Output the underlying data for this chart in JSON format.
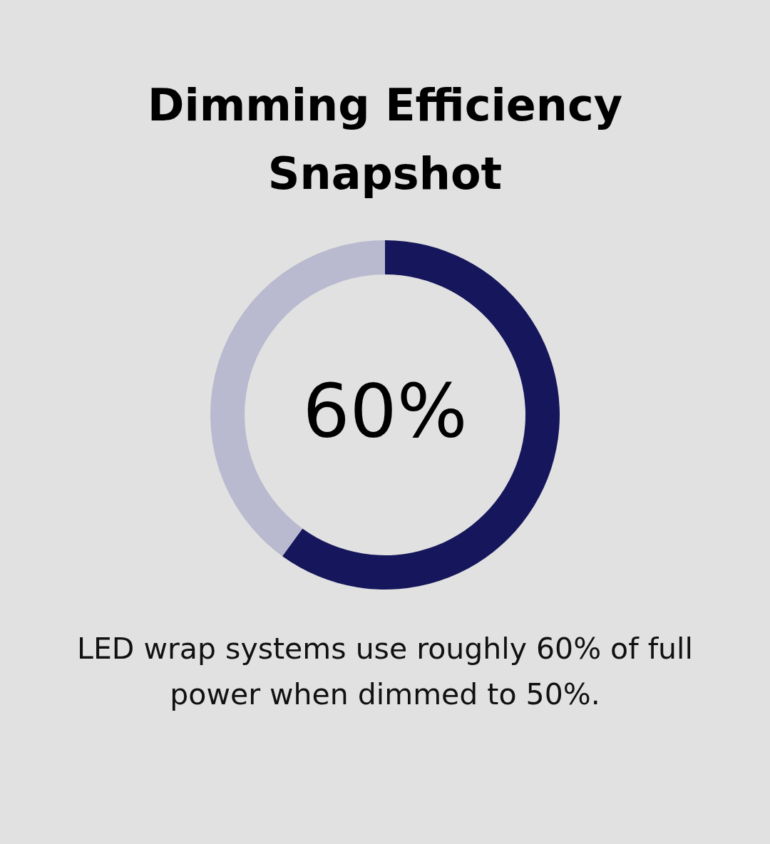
{
  "chart_data": {
    "type": "donut",
    "title": "Dimming Efficiency Snapshot",
    "categories": [
      null,
      null
    ],
    "values": [
      60,
      40
    ],
    "colors": [
      "#16165c",
      "#b9b9cf"
    ],
    "value_labels": [
      "60%",
      null
    ],
    "annotations": [
      "LED wrap systems use roughly 60% of full power when dimmed to 50%."
    ]
  }
}
